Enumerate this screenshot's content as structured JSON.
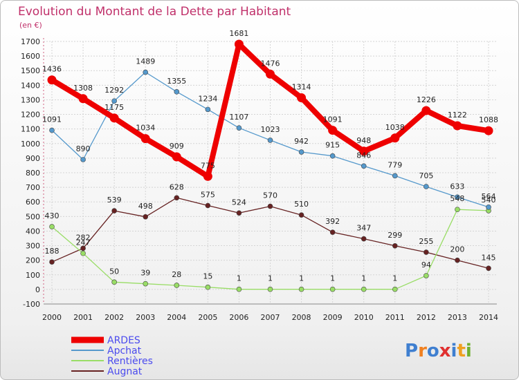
{
  "chart_data": {
    "type": "line",
    "title": "Evolution du Montant de la Dette par Habitant",
    "subtitle": "(en €)",
    "xlabel": "",
    "ylabel": "",
    "x": [
      "2000",
      "2001",
      "2002",
      "2003",
      "2004",
      "2005",
      "2006",
      "2007",
      "2008",
      "2009",
      "2010",
      "2011",
      "2012",
      "2013",
      "2014"
    ],
    "ylim": [
      -100,
      1700
    ],
    "yticks": [
      -100,
      0,
      100,
      200,
      300,
      400,
      500,
      600,
      700,
      800,
      900,
      1000,
      1100,
      1200,
      1300,
      1400,
      1500,
      1600,
      1700
    ],
    "grid": true,
    "legend_position": "bottom-left",
    "series": [
      {
        "name": "ARDES",
        "color": "#ee0000",
        "values": [
          1436,
          1308,
          1175,
          1034,
          909,
          775,
          1681,
          1476,
          1314,
          1091,
          948,
          1038,
          1226,
          1122,
          1088
        ]
      },
      {
        "name": "Apchat",
        "color": "#5599cc",
        "values": [
          1091,
          890,
          1292,
          1489,
          1355,
          1234,
          1107,
          1023,
          942,
          915,
          846,
          779,
          705,
          633,
          564
        ]
      },
      {
        "name": "Rentières",
        "color": "#99dd66",
        "values": [
          430,
          247,
          50,
          39,
          28,
          15,
          1,
          1,
          1,
          1,
          1,
          1,
          94,
          548,
          540
        ]
      },
      {
        "name": "Augnat",
        "color": "#662222",
        "values": [
          188,
          282,
          539,
          498,
          628,
          575,
          524,
          570,
          510,
          392,
          347,
          299,
          255,
          200,
          145
        ]
      }
    ]
  },
  "logo": {
    "text": "Proxiti"
  }
}
